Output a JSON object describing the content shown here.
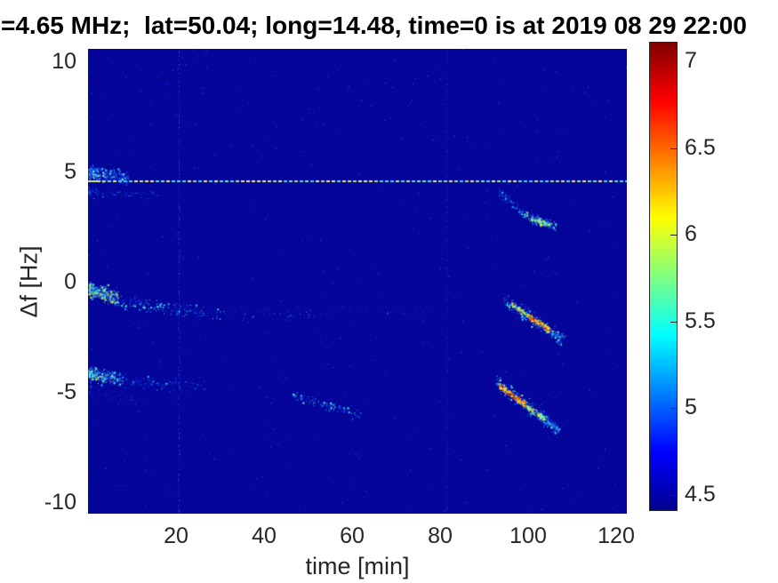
{
  "title": {
    "text": "=4.65 MHz;  lat=50.04; long=14.48, time=0 is at 2019 08 29 22:00"
  },
  "axes": {
    "x": {
      "label": "time [min]",
      "ticks": [
        {
          "v": 20,
          "label": "20"
        },
        {
          "v": 40,
          "label": "40"
        },
        {
          "v": 60,
          "label": "60"
        },
        {
          "v": 80,
          "label": "80"
        },
        {
          "v": 100,
          "label": "100"
        },
        {
          "v": 120,
          "label": "120"
        }
      ]
    },
    "y": {
      "label": "Δf [Hz]",
      "ticks": [
        {
          "v": 10,
          "label": "10"
        },
        {
          "v": 5,
          "label": "5"
        },
        {
          "v": 0,
          "label": "0"
        },
        {
          "v": -5,
          "label": "-5"
        },
        {
          "v": -10,
          "label": "-10"
        }
      ]
    }
  },
  "colorbar": {
    "colormap": "jet",
    "range": [
      4.4,
      7.11
    ],
    "ticks": [
      {
        "v": 7,
        "label": "7"
      },
      {
        "v": 6.5,
        "label": "6.5"
      },
      {
        "v": 6,
        "label": "6"
      },
      {
        "v": 5.5,
        "label": "5.5"
      },
      {
        "v": 5,
        "label": "5"
      },
      {
        "v": 4.5,
        "label": "4.5"
      }
    ]
  },
  "chart_data": {
    "type": "heatmap",
    "subtype": "doppler-spectrogram",
    "title": "=4.65 MHz;  lat=50.04; long=14.48, time=0 is at 2019 08 29 22:00",
    "xlabel": "time [min]",
    "ylabel": "Δf [Hz]",
    "xlim": [
      0,
      122.5
    ],
    "ylim": [
      -10.5,
      10.56
    ],
    "caxis": [
      4.4,
      7.11
    ],
    "colormap": "jet",
    "grid": false,
    "legend": "colorbar-right",
    "background_value": 4.5,
    "background_color": "#05059a",
    "seed": 20190829,
    "features": [
      {
        "type": "noise",
        "count": 2600,
        "palette": [
          "#0809a4",
          "#0b0fb2",
          "#0e15bf",
          "#1018c6"
        ],
        "color_bias": 1.6,
        "big": 0.05
      },
      {
        "type": "noise",
        "count": 220,
        "palette": [
          "#1428cе",
          "#1a35d6",
          "#2255e0"
        ],
        "color_bias": 1.8,
        "big": 0.0
      },
      {
        "type": "vline",
        "t": 20.7,
        "density": 0.5,
        "palette": [
          "#0b16b8",
          "#0f24cc",
          "#1538da",
          "#1f50e2"
        ]
      },
      {
        "type": "vline",
        "t": 81.5,
        "density": 0.42,
        "palette": [
          "#0a12b0",
          "#0d1cc0",
          "#1130d2"
        ]
      },
      {
        "type": "streak",
        "t": [
          0.3,
          9
        ],
        "f": [
          4.95,
          4.72
        ],
        "thickness": 0.45,
        "count": 330,
        "bias": 1.7,
        "big": 0.2,
        "palette": [
          "#0b2ae0",
          "#1550ee",
          "#1e88f0",
          "#27c0f2",
          "#3ae2f5",
          "#7df0e8",
          "#b9f7c9"
        ],
        "color_bias": 1.7
      },
      {
        "type": "streak",
        "t": [
          0.2,
          16
        ],
        "f": [
          4.05,
          3.9
        ],
        "thickness": 0.3,
        "count": 110,
        "bias": 2.2,
        "big": 0.1,
        "palette": [
          "#0a1ecc",
          "#1038dd",
          "#1a70ea",
          "#2ab8f0"
        ],
        "color_bias": 2.3
      },
      {
        "type": "streak",
        "t": [
          0.3,
          7
        ],
        "f": [
          -0.35,
          -0.75
        ],
        "thickness": 0.5,
        "count": 340,
        "bias": 1.4,
        "big": 0.28,
        "palette": [
          "#1240e8",
          "#22a8f0",
          "#3be0f4",
          "#79f2b7",
          "#aef560",
          "#d8f83f"
        ],
        "color_bias": 1.35
      },
      {
        "type": "streak",
        "t": [
          7,
          31
        ],
        "f": [
          -0.9,
          -1.55
        ],
        "thickness": 0.45,
        "count": 230,
        "bias": 1.15,
        "big": 0.15,
        "palette": [
          "#0a20cc",
          "#1340e4",
          "#1e90ee",
          "#30d0f0",
          "#60efc0"
        ],
        "color_bias": 2.1
      },
      {
        "type": "streak",
        "t": [
          31,
          57
        ],
        "f": [
          -1.5,
          -1.35
        ],
        "thickness": 0.45,
        "count": 70,
        "bias": 1,
        "big": 0.08,
        "palette": [
          "#0a1cc4",
          "#1236d8",
          "#1c66e6",
          "#2aa8ee"
        ],
        "color_bias": 2.6
      },
      {
        "type": "streak",
        "t": [
          57,
          78
        ],
        "f": [
          -1.35,
          -1.3
        ],
        "thickness": 0.4,
        "count": 40,
        "bias": 1,
        "big": 0.05,
        "palette": [
          "#0a16b8",
          "#0f28cc",
          "#1748dc"
        ],
        "color_bias": 2.8
      },
      {
        "type": "streak",
        "t": [
          0.3,
          8
        ],
        "f": [
          -4.15,
          -4.45
        ],
        "thickness": 0.45,
        "count": 300,
        "bias": 1.5,
        "big": 0.25,
        "palette": [
          "#0c2ce0",
          "#1a70ee",
          "#28c2f2",
          "#44ecee",
          "#8cf5a8",
          "#c8f84e"
        ],
        "color_bias": 1.6
      },
      {
        "type": "streak",
        "t": [
          8,
          27
        ],
        "f": [
          -4.5,
          -4.7
        ],
        "thickness": 0.5,
        "count": 150,
        "bias": 1.2,
        "big": 0.12,
        "palette": [
          "#0a20cc",
          "#1342e0",
          "#1d88ea",
          "#2cc4f0"
        ],
        "color_bias": 2.3
      },
      {
        "type": "streak",
        "t": [
          0.5,
          14
        ],
        "f": [
          -5.1,
          -5.4
        ],
        "thickness": 0.6,
        "count": 70,
        "bias": 1.8,
        "big": 0.08,
        "palette": [
          "#0a18c0",
          "#1030d4",
          "#1a5ce4"
        ],
        "color_bias": 2.8
      },
      {
        "type": "streak",
        "t": [
          46.5,
          62
        ],
        "f": [
          -5.15,
          -6.05
        ],
        "thickness": 0.35,
        "count": 130,
        "bias": 1,
        "big": 0.15,
        "palette": [
          "#0c2ad8",
          "#1a55ea",
          "#25a5ee",
          "#38dcf2",
          "#72f2c2"
        ],
        "color_bias": 2.0
      },
      {
        "type": "streak",
        "t": [
          93.5,
          99
        ],
        "f": [
          4.1,
          3.05
        ],
        "thickness": 0.3,
        "count": 90,
        "bias": 1,
        "big": 0.12,
        "palette": [
          "#0c2ad8",
          "#1a66ea",
          "#2cb8f0",
          "#45e8f0"
        ],
        "color_bias": 1.9
      },
      {
        "type": "streak",
        "t": [
          99,
          106.5
        ],
        "f": [
          3.05,
          2.5
        ],
        "thickness": 0.3,
        "count": 150,
        "bias": 1,
        "big": 0.2,
        "palette": [
          "#1550e8",
          "#27b2f0",
          "#3fe6ee",
          "#86f39e",
          "#c2f74e"
        ],
        "color_bias": 1.8
      },
      {
        "type": "streak",
        "t": [
          100.8,
          104.3
        ],
        "f": [
          2.85,
          2.6
        ],
        "thickness": 0.18,
        "count": 55,
        "bias": 1,
        "big": 0.3,
        "palette": [
          "#39e2ef",
          "#8af39b",
          "#c6f748",
          "#eefb2e"
        ],
        "color_bias": 1.3
      },
      {
        "type": "streak",
        "t": [
          94.5,
          107.5
        ],
        "f": [
          -0.8,
          -2.6
        ],
        "thickness": 0.5,
        "count": 270,
        "bias": 1,
        "big": 0.2,
        "palette": [
          "#0e30dc",
          "#1c6cee",
          "#2eb6f1",
          "#46e9ef",
          "#84f3a4"
        ],
        "color_bias": 1.9
      },
      {
        "type": "streak",
        "t": [
          96.4,
          100.4
        ],
        "f": [
          -1.05,
          -1.55
        ],
        "thickness": 0.2,
        "count": 70,
        "bias": 1,
        "big": 0.3,
        "palette": [
          "#52ecd8",
          "#9cf581",
          "#d8f83b",
          "#ffc829",
          "#ff8d1a"
        ],
        "color_bias": 1.25
      },
      {
        "type": "streak",
        "t": [
          100.4,
          105.3
        ],
        "f": [
          -1.6,
          -2.2
        ],
        "thickness": 0.22,
        "count": 125,
        "bias": 1,
        "big": 0.35,
        "palette": [
          "#b4f656",
          "#f0fa30",
          "#ffb224",
          "#ff7713",
          "#f23d07",
          "#d31f04"
        ],
        "color_bias": 1.1
      },
      {
        "type": "streak",
        "t": [
          105.5,
          108.5
        ],
        "f": [
          -2.35,
          -2.5
        ],
        "thickness": 0.2,
        "count": 45,
        "bias": 1,
        "big": 0.12,
        "palette": [
          "#1240dc",
          "#1e8cec",
          "#30ccf0",
          "#4aeaee"
        ],
        "color_bias": 1.9
      },
      {
        "type": "streak",
        "t": [
          92.8,
          107
        ],
        "f": [
          -4.55,
          -6.7
        ],
        "thickness": 0.5,
        "count": 300,
        "bias": 1,
        "big": 0.2,
        "palette": [
          "#0e30dc",
          "#1c6cee",
          "#2eb6f1",
          "#46e9ef",
          "#84f3a4"
        ],
        "color_bias": 1.9
      },
      {
        "type": "streak",
        "t": [
          93.4,
          99.6
        ],
        "f": [
          -4.7,
          -5.6
        ],
        "thickness": 0.22,
        "count": 155,
        "bias": 1,
        "big": 0.35,
        "palette": [
          "#c8f748",
          "#f6f92c",
          "#ffaf22",
          "#ff7212",
          "#ef3a06",
          "#cf1d04"
        ],
        "color_bias": 1.15
      },
      {
        "type": "streak",
        "t": [
          99.6,
          103.8
        ],
        "f": [
          -5.62,
          -6.2
        ],
        "thickness": 0.2,
        "count": 90,
        "bias": 1,
        "big": 0.3,
        "palette": [
          "#55edd2",
          "#a2f578",
          "#dcf937",
          "#fce92b",
          "#ffb426"
        ],
        "color_bias": 1.3
      },
      {
        "type": "streak",
        "t": [
          103.8,
          107.2
        ],
        "f": [
          -6.25,
          -6.7
        ],
        "thickness": 0.25,
        "count": 70,
        "bias": 1,
        "big": 0.15,
        "palette": [
          "#1550e4",
          "#23a0ee",
          "#36d8f2",
          "#55eee0"
        ],
        "color_bias": 1.7
      },
      {
        "type": "hline_dashed",
        "f": 4.56,
        "dash": 4,
        "gap": 2,
        "lead_solid": 10,
        "palette": [
          "#cdeb7a",
          "#a8e47c",
          "#5fd8d8",
          "#49cdeb",
          "#e8f18c",
          "#8fe0a8",
          "#f2e96a"
        ]
      }
    ]
  }
}
